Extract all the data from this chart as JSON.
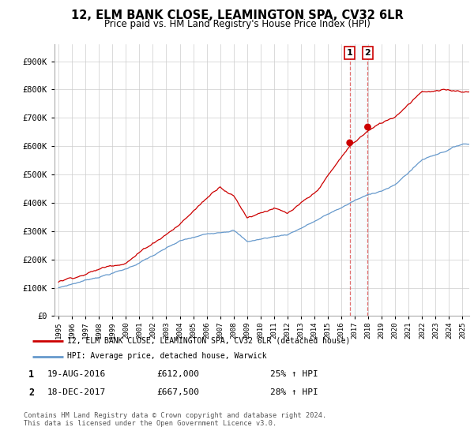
{
  "title": "12, ELM BANK CLOSE, LEAMINGTON SPA, CV32 6LR",
  "subtitle": "Price paid vs. HM Land Registry's House Price Index (HPI)",
  "legend_line1": "12, ELM BANK CLOSE, LEAMINGTON SPA, CV32 6LR (detached house)",
  "legend_line2": "HPI: Average price, detached house, Warwick",
  "footnote": "Contains HM Land Registry data © Crown copyright and database right 2024.\nThis data is licensed under the Open Government Licence v3.0.",
  "transaction1_date": "19-AUG-2016",
  "transaction1_price": "£612,000",
  "transaction1_hpi": "25% ↑ HPI",
  "transaction2_date": "18-DEC-2017",
  "transaction2_price": "£667,500",
  "transaction2_hpi": "28% ↑ HPI",
  "red_color": "#cc0000",
  "blue_color": "#6699cc",
  "vline_color": "#dd4444",
  "ylim_min": 0,
  "ylim_max": 950000,
  "yticks": [
    0,
    100000,
    200000,
    300000,
    400000,
    500000,
    600000,
    700000,
    800000,
    900000
  ],
  "ytick_labels": [
    "£0",
    "£100K",
    "£200K",
    "£300K",
    "£400K",
    "£500K",
    "£600K",
    "£700K",
    "£800K",
    "£900K"
  ],
  "start_year": 1995,
  "end_year": 2025,
  "t1_price": 612000,
  "t2_price": 667500,
  "t1_year": 2016,
  "t1_month": 8,
  "t2_year": 2017,
  "t2_month": 12
}
